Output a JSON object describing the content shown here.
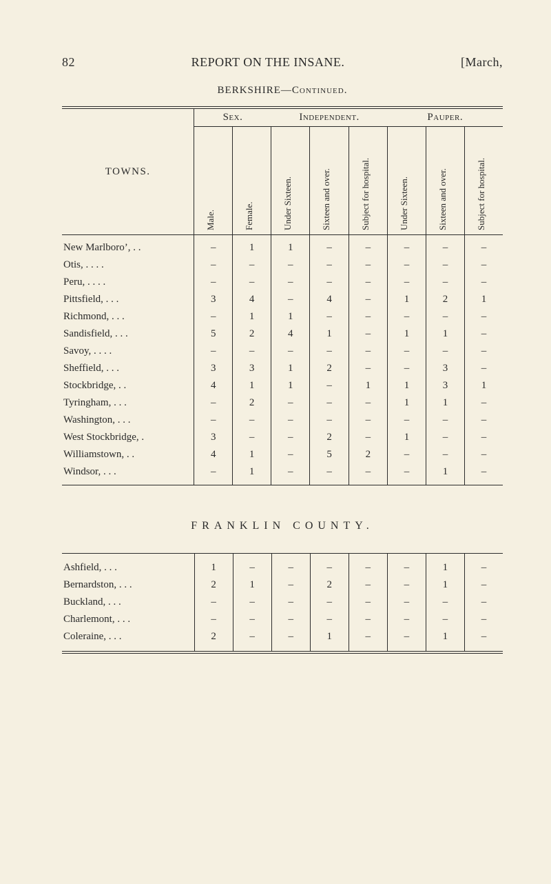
{
  "page": {
    "number": "82",
    "title": "REPORT ON THE INSANE.",
    "date": "[March,",
    "subhead": "BERKSHIRE—Continued."
  },
  "columns": {
    "towns_label": "TOWNS.",
    "groups": [
      "Sex.",
      "Independent.",
      "Pauper."
    ],
    "heads": [
      "Male.",
      "Female.",
      "Under Sixteen.",
      "Sixteen and over.",
      "Subject for hospital.",
      "Under Sixteen.",
      "Sixteen and over.",
      "Subject for hospital."
    ]
  },
  "berkshire_rows": [
    {
      "town": "New Marlboro’,   .      .",
      "vals": [
        "–",
        "1",
        "1",
        "–",
        "–",
        "–",
        "–",
        "–"
      ]
    },
    {
      "town": "Otis,      .      .      .      .",
      "vals": [
        "–",
        "–",
        "–",
        "–",
        "–",
        "–",
        "–",
        "–"
      ]
    },
    {
      "town": "Peru,     .      .      .      .",
      "vals": [
        "–",
        "–",
        "–",
        "–",
        "–",
        "–",
        "–",
        "–"
      ]
    },
    {
      "town": "Pittsfield,      .      .      .",
      "vals": [
        "3",
        "4",
        "–",
        "4",
        "–",
        "1",
        "2",
        "1"
      ]
    },
    {
      "town": "Richmond,    .      .      .",
      "vals": [
        "–",
        "1",
        "1",
        "–",
        "–",
        "–",
        "–",
        "–"
      ]
    },
    {
      "town": "Sandisfield,  .      .      .",
      "vals": [
        "5",
        "2",
        "4",
        "1",
        "–",
        "1",
        "1",
        "–"
      ]
    },
    {
      "town": "Savoy,   .      .      .      .",
      "vals": [
        "–",
        "–",
        "–",
        "–",
        "–",
        "–",
        "–",
        "–"
      ]
    },
    {
      "town": "Sheffield,      .      .      .",
      "vals": [
        "3",
        "3",
        "1",
        "2",
        "–",
        "–",
        "3",
        "–"
      ]
    },
    {
      "town": "Stockbridge,        .      .",
      "vals": [
        "4",
        "1",
        "1",
        "–",
        "1",
        "1",
        "3",
        "1"
      ]
    },
    {
      "town": "Tyringham,  .      .      .",
      "vals": [
        "–",
        "2",
        "–",
        "–",
        "–",
        "1",
        "1",
        "–"
      ]
    },
    {
      "town": "Washington, .      .      .",
      "vals": [
        "–",
        "–",
        "–",
        "–",
        "–",
        "–",
        "–",
        "–"
      ]
    },
    {
      "town": "West Stockbridge,      .",
      "vals": [
        "3",
        "–",
        "–",
        "2",
        "–",
        "1",
        "–",
        "–"
      ]
    },
    {
      "town": "Williamstown,      .      .",
      "vals": [
        "4",
        "1",
        "–",
        "5",
        "2",
        "–",
        "–",
        "–"
      ]
    },
    {
      "town": "Windsor,      .      .      .",
      "vals": [
        "–",
        "1",
        "–",
        "–",
        "–",
        "–",
        "1",
        "–"
      ]
    }
  ],
  "county2_title": "FRANKLIN COUNTY.",
  "franklin_rows": [
    {
      "town": "Ashfield,       .      .      .",
      "vals": [
        "1",
        "–",
        "–",
        "–",
        "–",
        "–",
        "1",
        "–"
      ]
    },
    {
      "town": "Bernardston, .      .      .",
      "vals": [
        "2",
        "1",
        "–",
        "2",
        "–",
        "–",
        "1",
        "–"
      ]
    },
    {
      "town": "Buckland,     .      .      .",
      "vals": [
        "–",
        "–",
        "–",
        "–",
        "–",
        "–",
        "–",
        "–"
      ]
    },
    {
      "town": "Charlemont, .      .      .",
      "vals": [
        "–",
        "–",
        "–",
        "–",
        "–",
        "–",
        "–",
        "–"
      ]
    },
    {
      "town": "Coleraine,     .      .      .",
      "vals": [
        "2",
        "–",
        "–",
        "1",
        "–",
        "–",
        "1",
        "–"
      ]
    }
  ]
}
